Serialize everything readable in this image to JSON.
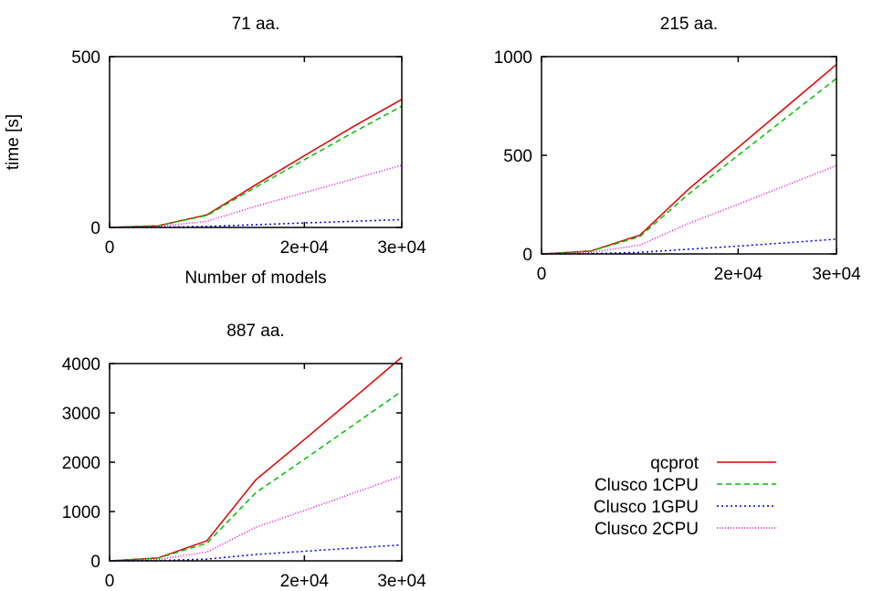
{
  "chart_data": [
    {
      "type": "line",
      "title": "71 aa.",
      "xlabel": "Number of models",
      "ylabel": "time [s]",
      "xlim": [
        0,
        30000
      ],
      "ylim": [
        0,
        500
      ],
      "xticks": [
        "0",
        "2e+04",
        "3e+04"
      ],
      "yticks": [
        "0",
        "500"
      ],
      "x": [
        0,
        5000,
        10000,
        15000,
        20000,
        25000,
        30000
      ],
      "series": [
        {
          "name": "qcprot",
          "color": "#e00000",
          "dash": "",
          "values": [
            0,
            5,
            37,
            125,
            210,
            295,
            375
          ]
        },
        {
          "name": "Clusco 1CPU",
          "color": "#00c000",
          "dash": "6,4",
          "values": [
            0,
            5,
            35,
            118,
            198,
            278,
            355
          ]
        },
        {
          "name": "Clusco 1GPU",
          "color": "#0000e0",
          "dash": "2,3",
          "values": [
            0,
            0.5,
            3,
            8,
            13,
            18,
            23
          ]
        },
        {
          "name": "Clusco 2CPU",
          "color": "#e000e0",
          "dash": "1,2",
          "values": [
            0,
            3,
            18,
            62,
            102,
            142,
            182
          ]
        }
      ]
    },
    {
      "type": "line",
      "title": "215 aa.",
      "xlabel": "",
      "ylabel": "",
      "xlim": [
        0,
        30000
      ],
      "ylim": [
        0,
        1000
      ],
      "xticks": [
        "0",
        "2e+04",
        "3e+04"
      ],
      "yticks": [
        "0",
        "500",
        "1000"
      ],
      "x": [
        0,
        5000,
        10000,
        15000,
        20000,
        25000,
        30000
      ],
      "series": [
        {
          "name": "qcprot",
          "color": "#e00000",
          "dash": "",
          "values": [
            0,
            15,
            95,
            330,
            540,
            750,
            960
          ]
        },
        {
          "name": "Clusco 1CPU",
          "color": "#00c000",
          "dash": "6,4",
          "values": [
            0,
            14,
            88,
            305,
            500,
            695,
            890
          ]
        },
        {
          "name": "Clusco 1GPU",
          "color": "#0000e0",
          "dash": "2,3",
          "values": [
            0,
            1.5,
            8,
            24,
            40,
            57,
            75
          ]
        },
        {
          "name": "Clusco 2CPU",
          "color": "#e000e0",
          "dash": "1,2",
          "values": [
            0,
            8,
            45,
            155,
            252,
            350,
            448
          ]
        }
      ]
    },
    {
      "type": "line",
      "title": "887 aa.",
      "xlabel": "",
      "ylabel": "",
      "xlim": [
        0,
        30000
      ],
      "ylim": [
        0,
        4000
      ],
      "xticks": [
        "0",
        "2e+04",
        "3e+04"
      ],
      "yticks": [
        "0",
        "1000",
        "2000",
        "3000",
        "4000"
      ],
      "x": [
        0,
        5000,
        10000,
        15000,
        20000,
        25000,
        30000
      ],
      "series": [
        {
          "name": "qcprot",
          "color": "#e00000",
          "dash": "",
          "values": [
            0,
            60,
            410,
            1640,
            2460,
            3290,
            4130
          ]
        },
        {
          "name": "Clusco 1CPU",
          "color": "#00c000",
          "dash": "6,4",
          "values": [
            0,
            55,
            360,
            1380,
            2060,
            2750,
            3440
          ]
        },
        {
          "name": "Clusco 1GPU",
          "color": "#0000e0",
          "dash": "2,3",
          "values": [
            0,
            6,
            35,
            130,
            195,
            260,
            325
          ]
        },
        {
          "name": "Clusco 2CPU",
          "color": "#e000e0",
          "dash": "1,2",
          "values": [
            0,
            28,
            180,
            680,
            1020,
            1370,
            1720
          ]
        }
      ]
    }
  ],
  "legend": {
    "position": "bottom-right",
    "entries": [
      {
        "label": "qcprot",
        "color": "#e00000",
        "dash": ""
      },
      {
        "label": "Clusco 1CPU",
        "color": "#00c000",
        "dash": "6,4"
      },
      {
        "label": "Clusco 1GPU",
        "color": "#0000e0",
        "dash": "2,3"
      },
      {
        "label": "Clusco 2CPU",
        "color": "#e000e0",
        "dash": "1,2"
      }
    ]
  }
}
